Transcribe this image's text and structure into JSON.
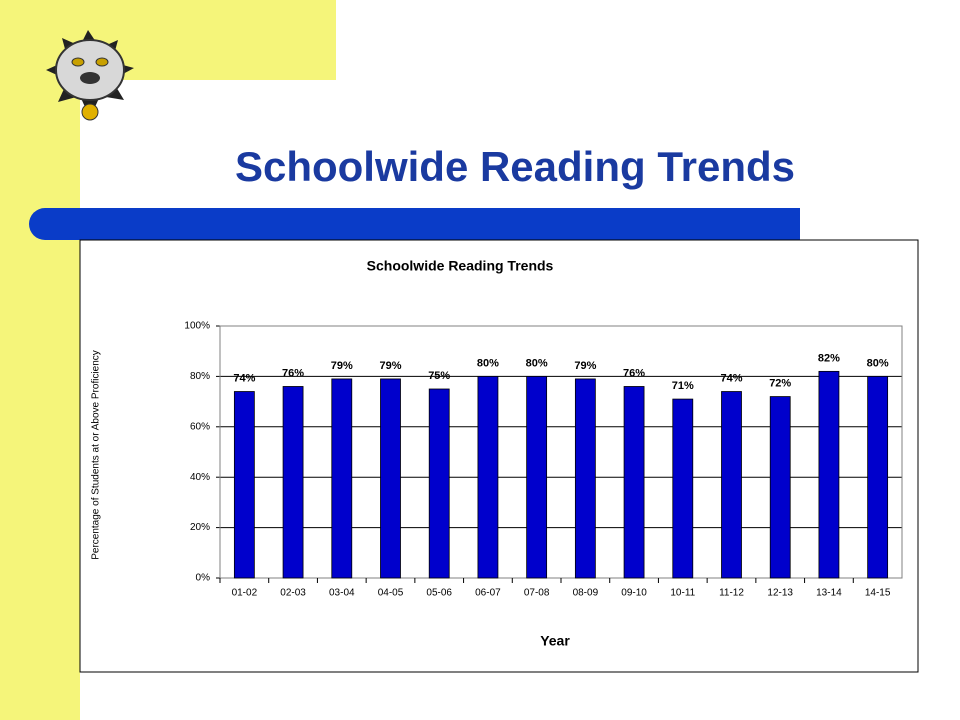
{
  "slide_title": "Schoolwide Reading Trends",
  "chart_data": {
    "type": "bar",
    "title": "Schoolwide Reading Trends",
    "x_label": "Year",
    "y_label": "Percentage of Students at or Above Proficiency",
    "categories": [
      "01-02",
      "02-03",
      "03-04",
      "04-05",
      "05-06",
      "06-07",
      "07-08",
      "08-09",
      "09-10",
      "10-11",
      "11-12",
      "12-13",
      "13-14",
      "14-15"
    ],
    "values": [
      74,
      76,
      79,
      79,
      75,
      80,
      80,
      79,
      76,
      71,
      74,
      72,
      82,
      80
    ],
    "value_labels": [
      "74%",
      "76%",
      "79%",
      "79%",
      "75%",
      "80%",
      "80%",
      "79%",
      "76%",
      "71%",
      "74%",
      "72%",
      "82%",
      "80%"
    ],
    "color": "#0000cc",
    "ylim": [
      0,
      100
    ],
    "yticks": [
      {
        "value": 0,
        "label": "0%"
      },
      {
        "value": 20,
        "label": "20%"
      },
      {
        "value": 40,
        "label": "40%"
      },
      {
        "value": 60,
        "label": "60%"
      },
      {
        "value": 80,
        "label": "80%"
      },
      {
        "value": 100,
        "label": "100%"
      }
    ],
    "grid": true
  }
}
